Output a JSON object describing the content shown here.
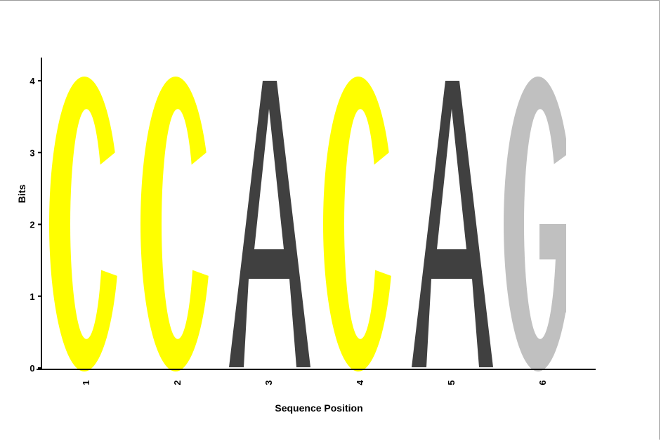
{
  "chart_data": {
    "type": "sequence-logo",
    "xlabel": "Sequence Position",
    "ylabel": "Bits",
    "ylim": [
      0,
      4
    ],
    "yticks": [
      "0",
      "1",
      "2",
      "3",
      "4"
    ],
    "positions": [
      {
        "label": "1",
        "letter": "C",
        "bits": 4.0
      },
      {
        "label": "2",
        "letter": "C",
        "bits": 4.0
      },
      {
        "label": "3",
        "letter": "A",
        "bits": 4.0
      },
      {
        "label": "4",
        "letter": "C",
        "bits": 4.0
      },
      {
        "label": "5",
        "letter": "A",
        "bits": 4.0
      },
      {
        "label": "6",
        "letter": "G",
        "bits": 4.0
      }
    ],
    "colors": {
      "C": "#ffff00",
      "A": "#404040",
      "G": "#c0c0c0",
      "T": "#e00000"
    },
    "grid": false
  }
}
